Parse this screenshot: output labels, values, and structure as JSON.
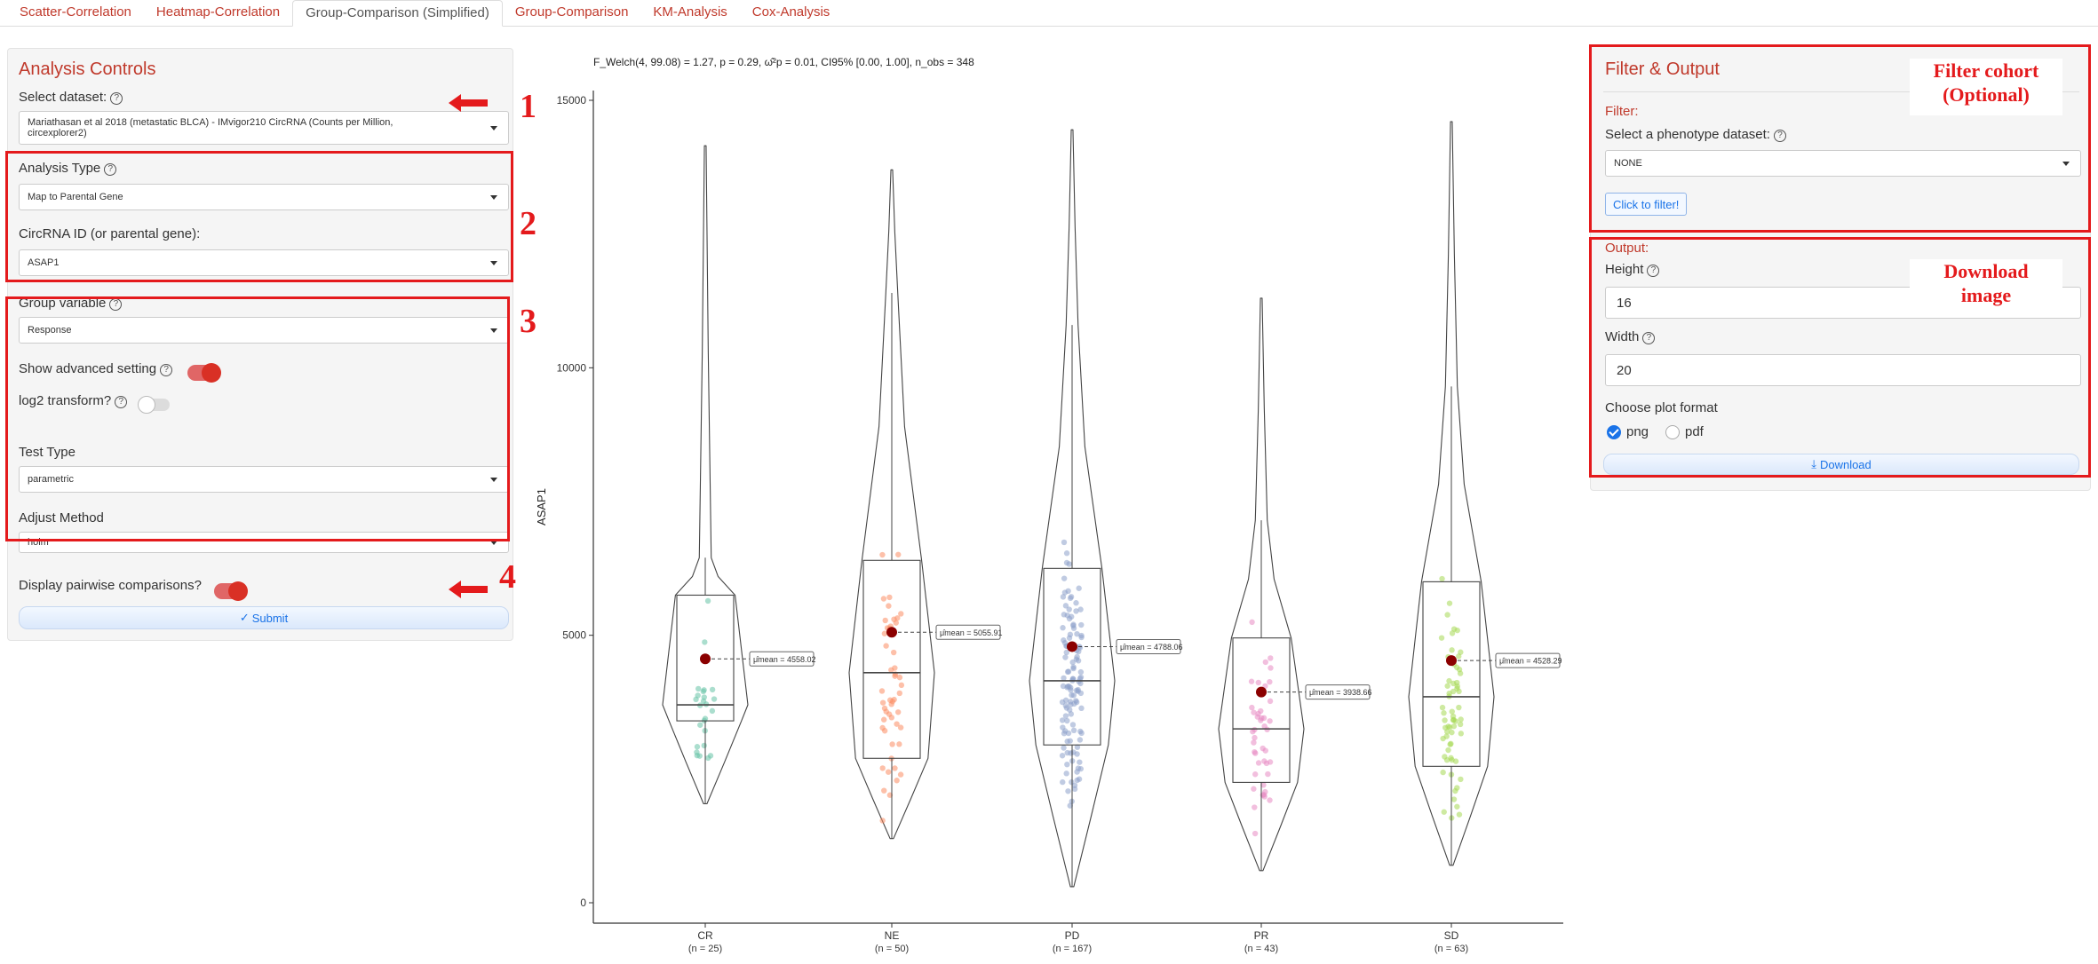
{
  "tabs": [
    {
      "label": "Scatter-Correlation",
      "active": false
    },
    {
      "label": "Heatmap-Correlation",
      "active": false
    },
    {
      "label": "Group-Comparison (Simplified)",
      "active": true
    },
    {
      "label": "Group-Comparison",
      "active": false
    },
    {
      "label": "KM-Analysis",
      "active": false
    },
    {
      "label": "Cox-Analysis",
      "active": false
    }
  ],
  "controls": {
    "title": "Analysis Controls",
    "dataset_label": "Select dataset:",
    "dataset_value_line1": "Mariathasan et al 2018 (metastatic BLCA) - IMvigor210 CircRNA (Counts per Million,",
    "dataset_value_line2": "circexplorer2)",
    "analysis_type_label": "Analysis Type",
    "analysis_type_value": "Map to Parental Gene",
    "circrna_label": "CircRNA ID (or parental gene):",
    "circrna_value": "ASAP1",
    "group_variable_label": "Group variable",
    "group_variable_value": "Response",
    "advanced_label": "Show advanced setting",
    "advanced_on": true,
    "log2_label": "log2 transform?",
    "log2_on": false,
    "test_type_label": "Test Type",
    "test_type_value": "parametric",
    "adjust_label": "Adjust Method",
    "adjust_value": "holm",
    "pairwise_label": "Display pairwise comparisons?",
    "pairwise_on": true,
    "submit_label": "Submit",
    "submit_icon": "check-icon"
  },
  "filter_output": {
    "title": "Filter & Output",
    "filter_label": "Filter:",
    "phenotype_label": "Select a phenotype dataset:",
    "phenotype_value": "NONE",
    "filter_button": "Click to filter!",
    "output_label": "Output:",
    "height_label": "Height",
    "height_value": "16",
    "width_label": "Width",
    "width_value": "20",
    "format_label": "Choose plot format",
    "format_options": [
      "png",
      "pdf"
    ],
    "format_selected": "png",
    "download_label": "Download",
    "download_icon": "download-icon"
  },
  "annotations": {
    "step1": "1",
    "step2": "2",
    "step3": "3",
    "step4": "4",
    "filter_note_line1": "Filter cohort",
    "filter_note_line2": "(Optional)",
    "download_note_line1": "Download",
    "download_note_line2": "image",
    "color": "#e41a1c"
  },
  "chart_data": {
    "type": "violin-box-jitter",
    "subtitle": "F_Welch(4, 99.08) = 1.27, p = 0.29, ω̂²p = 0.01, CI95% [0.00, 1.00], n_obs = 348",
    "ylabel": "ASAP1",
    "xlabel": "",
    "ylim": [
      0,
      15000
    ],
    "yticks": [
      0,
      5000,
      10000,
      15000
    ],
    "groups": [
      {
        "name": "CR",
        "n_label": "(n = 25)",
        "color": "#66c2a5",
        "mean": 4558.02,
        "mean_label": "μ̂mean = 4558.02",
        "q1": 3400,
        "median": 3700,
        "q3": 5750,
        "wlow": 1850,
        "whigh": 6450,
        "min": 1850,
        "max": 14150
      },
      {
        "name": "NE",
        "n_label": "(n = 50)",
        "color": "#fc8d62",
        "mean": 5055.91,
        "mean_label": "μ̂mean = 5055.91",
        "q1": 2700,
        "median": 4300,
        "q3": 6400,
        "wlow": 1200,
        "whigh": 11400,
        "min": 1200,
        "max": 13700
      },
      {
        "name": "PD",
        "n_label": "(n = 167)",
        "color": "#8da0cb",
        "mean": 4788.06,
        "mean_label": "μ̂mean = 4788.06",
        "q1": 2950,
        "median": 4150,
        "q3": 6250,
        "wlow": 300,
        "whigh": 10800,
        "min": 300,
        "max": 14450
      },
      {
        "name": "PR",
        "n_label": "(n = 43)",
        "color": "#e78ac3",
        "mean": 3938.66,
        "mean_label": "μ̂mean = 3938.66",
        "q1": 2250,
        "median": 3250,
        "q3": 4950,
        "wlow": 600,
        "whigh": 7150,
        "min": 600,
        "max": 11300
      },
      {
        "name": "SD",
        "n_label": "(n = 63)",
        "color": "#a6d854",
        "mean": 4528.29,
        "mean_label": "μ̂mean = 4528.29",
        "q1": 2550,
        "median": 3850,
        "q3": 6000,
        "wlow": 700,
        "whigh": 9650,
        "min": 700,
        "max": 14600
      }
    ],
    "grid": false,
    "legend": "none"
  }
}
